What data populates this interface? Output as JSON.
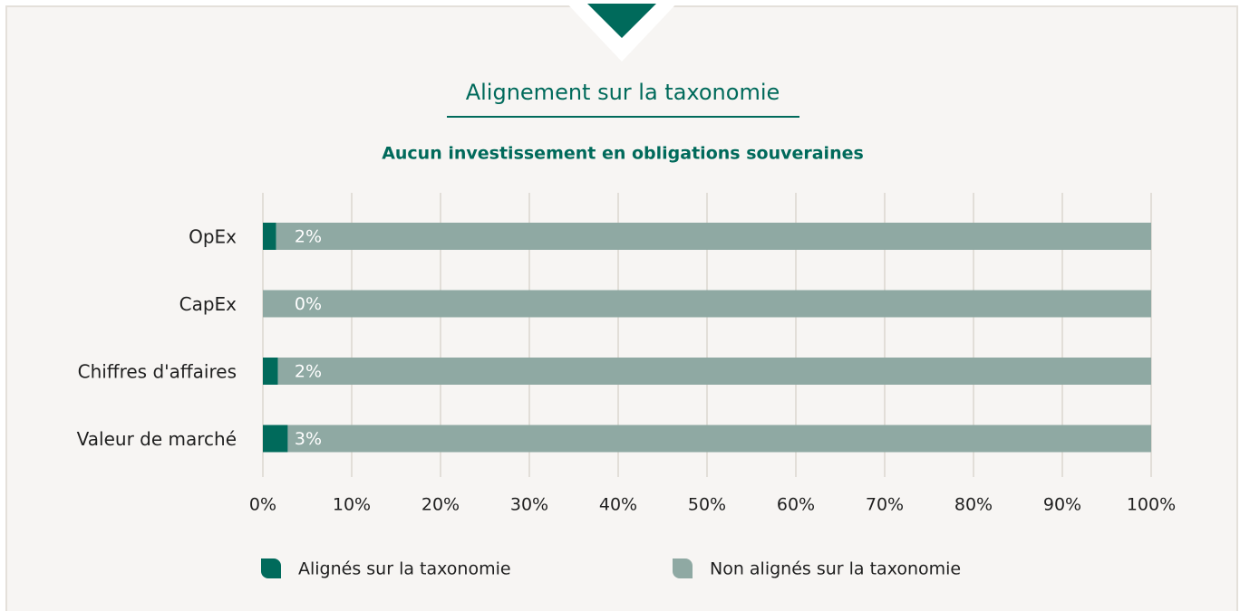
{
  "chart_data": {
    "type": "stacked-barh",
    "title": "Alignement sur la taxonomie",
    "subtitle": "Aucun investissement en obligations souveraines",
    "categories": [
      "OpEx",
      "CapEx",
      "Chiffres d'affaires",
      "Valeur de marché"
    ],
    "series": [
      {
        "name": "Alignés sur la taxonomie",
        "color": "#006a5b",
        "values": [
          1.5,
          0,
          1.7,
          2.8
        ],
        "value_labels": [
          "2%",
          "0%",
          "2%",
          "3%"
        ]
      },
      {
        "name": "Non alignés sur la taxonomie",
        "color": "#8fa9a3",
        "values": [
          98.5,
          100,
          98.3,
          97.2
        ]
      }
    ],
    "xlim": [
      0,
      100
    ],
    "xticks": [
      {
        "value": 0,
        "label": "0%"
      },
      {
        "value": 10,
        "label": "10%"
      },
      {
        "value": 20,
        "label": "20%"
      },
      {
        "value": 30,
        "label": "30%"
      },
      {
        "value": 40,
        "label": "40%"
      },
      {
        "value": 50,
        "label": "50%"
      },
      {
        "value": 60,
        "label": "60%"
      },
      {
        "value": 70,
        "label": "70%"
      },
      {
        "value": 80,
        "label": "80%"
      },
      {
        "value": 90,
        "label": "90%"
      },
      {
        "value": 100,
        "label": "100%"
      }
    ],
    "grid": true
  }
}
